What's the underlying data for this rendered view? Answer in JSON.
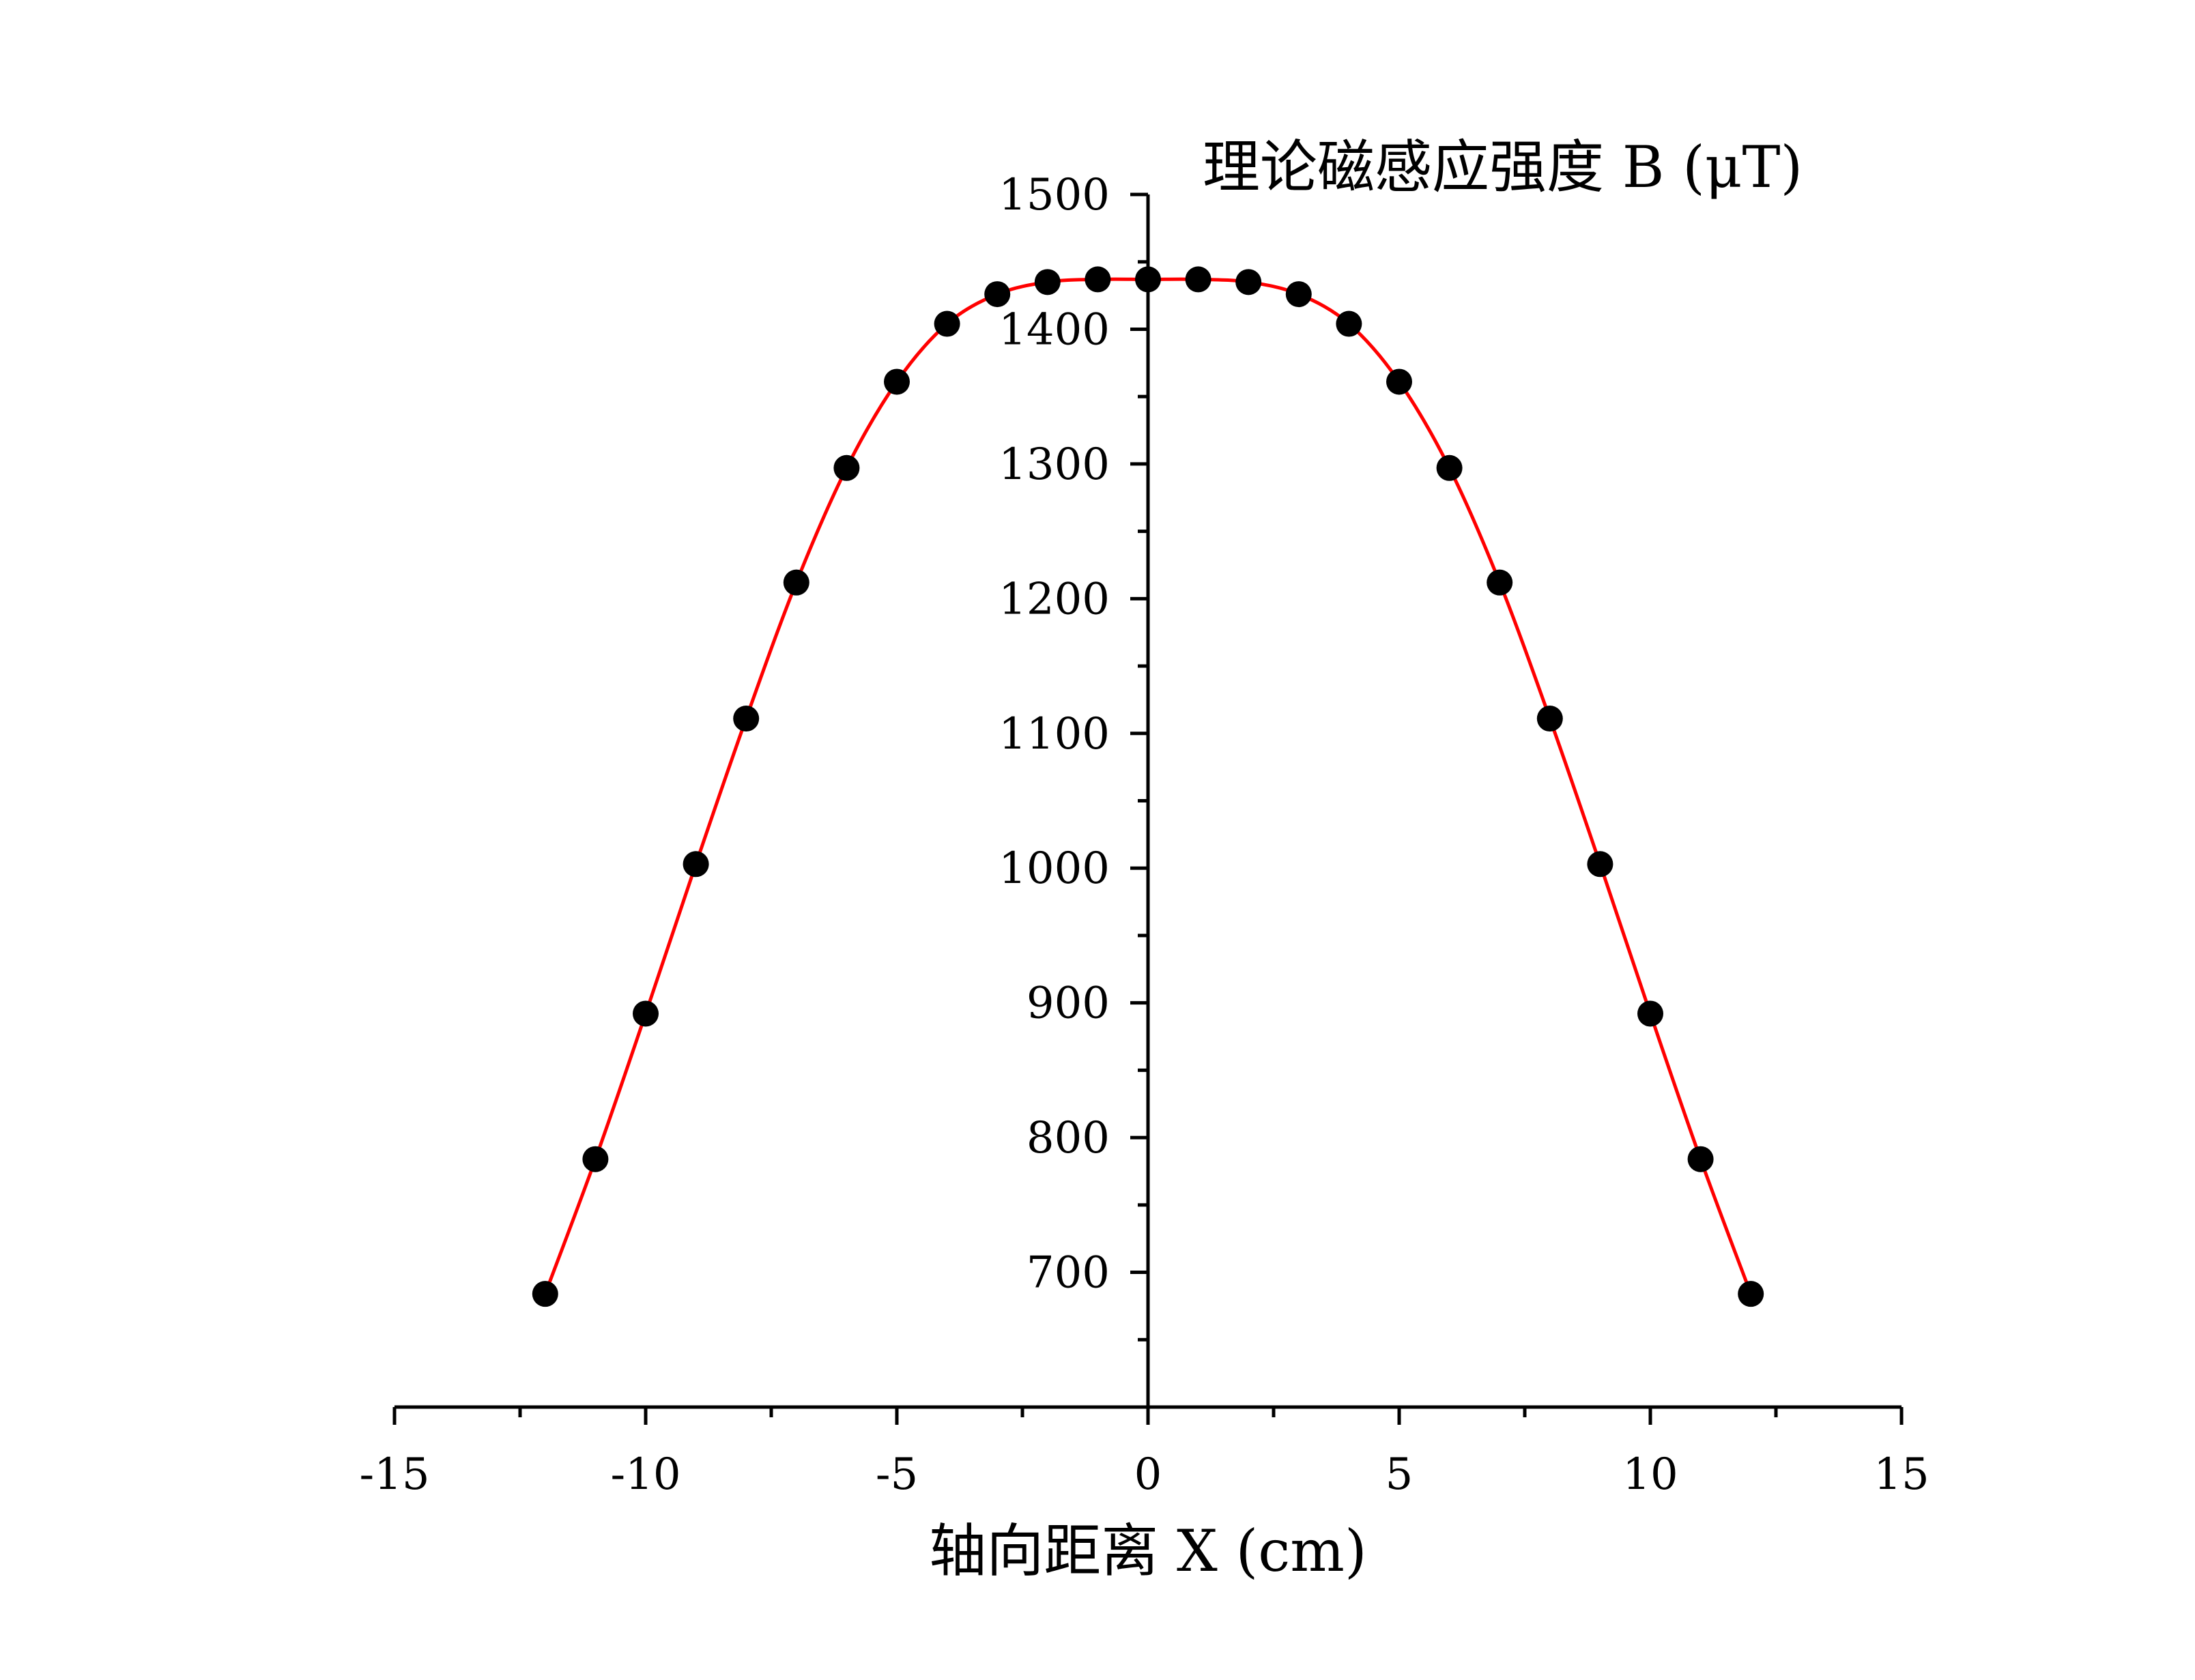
{
  "chart_data": {
    "type": "scatter",
    "title": "",
    "xlabel": "轴向距离 X (cm)",
    "ylabel": "理论磁感应强度 B (μT)",
    "xlim": [
      -15,
      15
    ],
    "ylim": [
      600,
      1500
    ],
    "x_ticks": [
      -15,
      -10,
      -5,
      0,
      5,
      10,
      15
    ],
    "y_ticks": [
      700,
      800,
      900,
      1000,
      1100,
      1200,
      1300,
      1400,
      1500
    ],
    "x_tick_labels": [
      "-15",
      "-10",
      "-5",
      "0",
      "5",
      "10",
      "15"
    ],
    "y_tick_labels": [
      "700",
      "800",
      "900",
      "1000",
      "1100",
      "1200",
      "1300",
      "1400",
      "1500"
    ],
    "grid": false,
    "legend": "none",
    "series": [
      {
        "kind": "points",
        "color": "#000000",
        "x": [
          -12,
          -11,
          -10,
          -9,
          -8,
          -7,
          -6,
          -5,
          -4,
          -3,
          -2,
          -1,
          0,
          1,
          2,
          3,
          4,
          5,
          6,
          7,
          8,
          9,
          10,
          11,
          12
        ],
        "y": [
          684,
          784,
          892,
          1003,
          1111,
          1212,
          1297,
          1361,
          1404,
          1426,
          1435,
          1437,
          1437,
          1437,
          1435,
          1426,
          1404,
          1361,
          1297,
          1212,
          1111,
          1003,
          892,
          784,
          684
        ]
      },
      {
        "kind": "line",
        "color": "#ff0000",
        "x": [
          -12,
          -11,
          -10,
          -9,
          -8,
          -7,
          -6,
          -5,
          -4,
          -3,
          -2,
          -1,
          0,
          1,
          2,
          3,
          4,
          5,
          6,
          7,
          8,
          9,
          10,
          11,
          12
        ],
        "y": [
          684,
          784,
          892,
          1003,
          1111,
          1212,
          1297,
          1361,
          1404,
          1426,
          1435,
          1437,
          1437,
          1437,
          1435,
          1426,
          1404,
          1361,
          1297,
          1212,
          1111,
          1003,
          892,
          784,
          684
        ]
      }
    ]
  }
}
